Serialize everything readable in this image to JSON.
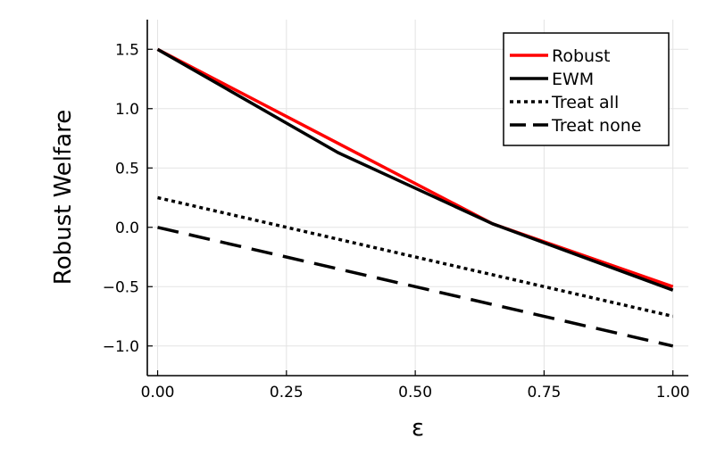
{
  "chart_data": {
    "type": "line",
    "xlabel": "ε",
    "ylabel": "Robust Welfare",
    "xlim": [
      -0.02,
      1.03
    ],
    "ylim": [
      -1.25,
      1.75
    ],
    "xticks": [
      0.0,
      0.25,
      0.5,
      0.75,
      1.0
    ],
    "xtick_labels": [
      "0.00",
      "0.25",
      "0.50",
      "0.75",
      "1.00"
    ],
    "yticks": [
      -1.0,
      -0.5,
      0.0,
      0.5,
      1.0,
      1.5
    ],
    "ytick_labels": [
      "−1.0",
      "−0.5",
      "0.0",
      "0.5",
      "1.0",
      "1.5"
    ],
    "grid": true,
    "legend_position": "top-right",
    "series": [
      {
        "name": "Robust",
        "color": "#ff0000",
        "dash": "solid",
        "x": [
          0.0,
          0.65,
          1.0
        ],
        "y": [
          1.5,
          0.03,
          -0.5
        ]
      },
      {
        "name": "EWM",
        "color": "#000000",
        "dash": "solid",
        "x": [
          0.0,
          0.35,
          0.65,
          1.0
        ],
        "y": [
          1.5,
          0.63,
          0.03,
          -0.53
        ]
      },
      {
        "name": "Treat all",
        "color": "#000000",
        "dash": "dotted",
        "x": [
          0.0,
          1.0
        ],
        "y": [
          0.25,
          -0.75
        ]
      },
      {
        "name": "Treat none",
        "color": "#000000",
        "dash": "dashed",
        "x": [
          0.0,
          1.0
        ],
        "y": [
          0.0,
          -1.0
        ]
      }
    ]
  }
}
